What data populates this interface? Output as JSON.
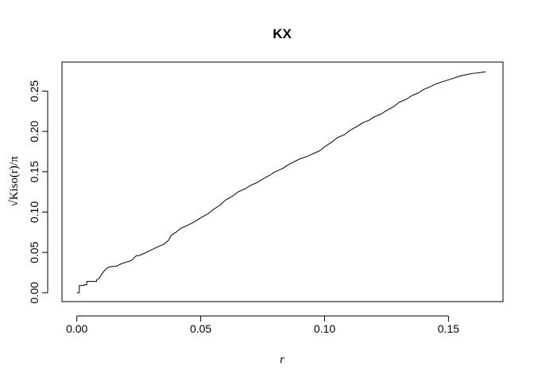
{
  "chart_data": {
    "type": "line",
    "title": "KX",
    "xlabel": "r",
    "ylabel": "√Kiso(r)/π",
    "xlim": [
      -0.006,
      0.172
    ],
    "ylim": [
      -0.011,
      0.286
    ],
    "xticks": [
      0.0,
      0.05,
      0.1,
      0.15
    ],
    "xtick_labels": [
      "0.00",
      "0.05",
      "0.10",
      "0.15"
    ],
    "yticks": [
      0.0,
      0.05,
      0.1,
      0.15,
      0.2,
      0.25
    ],
    "ytick_labels": [
      "0.00",
      "0.05",
      "0.10",
      "0.15",
      "0.20",
      "0.25"
    ],
    "grid": false,
    "series": [
      {
        "color": "#000000",
        "x": [
          0.0,
          0.001,
          0.001,
          0.003,
          0.003,
          0.004,
          0.004,
          0.008,
          0.008,
          0.009,
          0.01,
          0.011,
          0.012,
          0.013,
          0.016,
          0.018,
          0.02,
          0.022,
          0.024,
          0.025,
          0.028,
          0.03,
          0.032,
          0.035,
          0.037,
          0.038,
          0.04,
          0.042,
          0.045,
          0.048,
          0.05,
          0.053,
          0.055,
          0.058,
          0.06,
          0.063,
          0.065,
          0.068,
          0.07,
          0.073,
          0.075,
          0.078,
          0.08,
          0.083,
          0.085,
          0.088,
          0.09,
          0.093,
          0.095,
          0.098,
          0.1,
          0.103,
          0.105,
          0.108,
          0.11,
          0.113,
          0.115,
          0.118,
          0.12,
          0.123,
          0.125,
          0.128,
          0.13,
          0.133,
          0.135,
          0.138,
          0.14,
          0.143,
          0.145,
          0.148,
          0.15,
          0.153,
          0.155,
          0.158,
          0.16,
          0.163,
          0.165
        ],
        "y": [
          0.0,
          0.0,
          0.009,
          0.009,
          0.01,
          0.01,
          0.014,
          0.014,
          0.016,
          0.018,
          0.023,
          0.027,
          0.03,
          0.032,
          0.033,
          0.036,
          0.038,
          0.04,
          0.046,
          0.046,
          0.05,
          0.053,
          0.056,
          0.06,
          0.065,
          0.071,
          0.075,
          0.08,
          0.084,
          0.089,
          0.093,
          0.098,
          0.103,
          0.109,
          0.115,
          0.12,
          0.125,
          0.129,
          0.133,
          0.137,
          0.141,
          0.146,
          0.15,
          0.154,
          0.158,
          0.163,
          0.166,
          0.169,
          0.172,
          0.176,
          0.181,
          0.187,
          0.192,
          0.196,
          0.201,
          0.206,
          0.21,
          0.214,
          0.218,
          0.222,
          0.226,
          0.231,
          0.236,
          0.24,
          0.244,
          0.248,
          0.252,
          0.256,
          0.259,
          0.262,
          0.264,
          0.267,
          0.269,
          0.271,
          0.272,
          0.273,
          0.274
        ]
      }
    ]
  }
}
